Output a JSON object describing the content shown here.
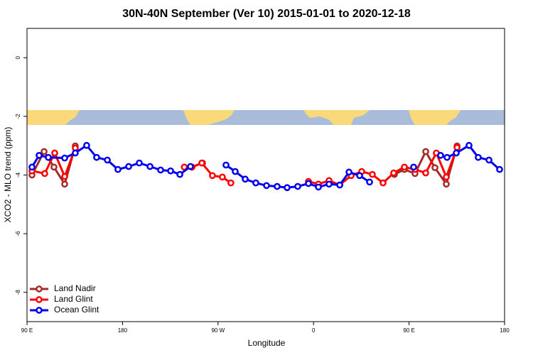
{
  "chart_data": {
    "type": "line",
    "title": "30N-40N September (Ver 10)   2015-01-01 to 2020-12-18",
    "x_label": "Longitude",
    "y_label": "XCO2 - MLO trend (ppm)",
    "xlim": [
      90,
      540
    ],
    "ylim": [
      -9,
      1
    ],
    "xticks": [
      {
        "value": 90,
        "label": "90 E"
      },
      {
        "value": 180,
        "label": "180"
      },
      {
        "value": 270,
        "label": "90 W"
      },
      {
        "value": 360,
        "label": "0"
      },
      {
        "value": 450,
        "label": "90 E"
      },
      {
        "value": 540,
        "label": "180"
      }
    ],
    "yticks": [
      0,
      -2,
      -4,
      -6,
      -8
    ],
    "legend": "bottom-left",
    "series": [
      {
        "name": "Land Nadir",
        "color": "#a52a2a",
        "x": [
          94.7,
          106.1,
          115.4,
          125.5,
          135.5,
          190,
          245.4,
          255.4,
          350,
          436.2,
          445.6,
          455.6,
          465.7,
          474.4,
          485.1,
          495.2
        ],
        "values": [
          -4.0,
          -3.2,
          -3.73,
          -4.31,
          -3.01,
          null,
          -3.73,
          -3.59,
          null,
          -3.98,
          -3.81,
          -3.95,
          -3.2,
          -3.75,
          -4.31,
          -3.01
        ]
      },
      {
        "name": "Land Glint",
        "color": "#ff0000",
        "x": [
          94.7,
          106.7,
          116.1,
          125.5,
          135.5,
          190,
          238.2,
          245.4,
          254.7,
          264.7,
          274.1,
          282.1,
          320,
          355.2,
          364.6,
          374.6,
          384.7,
          395.4,
          405.4,
          415.4,
          425.5,
          435.5,
          445.6,
          455.6,
          465.7,
          475.7,
          485.1,
          495.2
        ],
        "values": [
          -3.86,
          -3.95,
          -3.25,
          -4.05,
          -3.08,
          null,
          -3.73,
          -3.73,
          -3.59,
          -4.02,
          -4.07,
          -4.27,
          null,
          -4.22,
          -4.31,
          -4.19,
          -4.34,
          -4.02,
          -3.88,
          -3.98,
          -4.27,
          -3.93,
          -3.73,
          -3.81,
          -3.93,
          -3.25,
          -4.07,
          -3.06
        ]
      },
      {
        "name": "Ocean Glint",
        "color": "#0000ee",
        "x": [
          94.7,
          101.4,
          110.1,
          125.5,
          135.5,
          146.2,
          155.6,
          165.7,
          175.7,
          185.8,
          195.8,
          205.9,
          215.9,
          225.3,
          234.0,
          244.0,
          260,
          277.5,
          286.2,
          295.6,
          305.6,
          315.7,
          325.7,
          335.1,
          345.1,
          355.2,
          364.6,
          374.6,
          384.7,
          393.4,
          403.4,
          412.8,
          430,
          454.3,
          470,
          479.7,
          485.8,
          494.5,
          506.5,
          515.2,
          525.3,
          535.3
        ],
        "values": [
          -3.73,
          -3.33,
          -3.4,
          -3.42,
          -3.25,
          -2.99,
          -3.4,
          -3.49,
          -3.81,
          -3.71,
          -3.59,
          -3.71,
          -3.83,
          -3.86,
          -3.98,
          -3.71,
          null,
          -3.66,
          -3.88,
          -4.14,
          -4.27,
          -4.36,
          -4.39,
          -4.43,
          -4.39,
          -4.29,
          -4.41,
          -4.31,
          -4.34,
          -3.9,
          -4.02,
          -4.24,
          null,
          -3.73,
          null,
          -3.33,
          -3.4,
          -3.25,
          -2.99,
          -3.4,
          -3.49,
          -3.81
        ]
      }
    ]
  }
}
